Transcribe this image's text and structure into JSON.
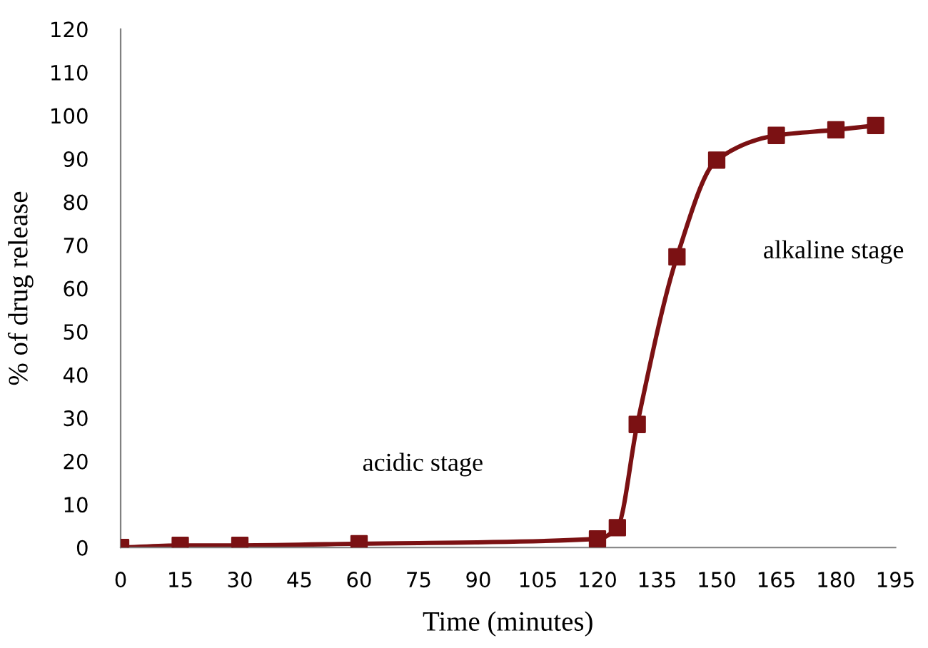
{
  "chart_data": {
    "type": "line",
    "xlabel": "Time (minutes)",
    "ylabel": "% of drug release",
    "x": [
      0,
      15,
      30,
      60,
      120,
      125,
      130,
      140,
      150,
      165,
      180,
      190
    ],
    "series": [
      {
        "color": "#7b1113",
        "values": [
          0,
          0.5,
          0.5,
          0.9,
          2.0,
          4.6,
          28.5,
          67.3,
          89.7,
          95.4,
          96.7,
          97.7
        ]
      }
    ],
    "xlim": [
      0,
      195
    ],
    "xticks": [
      0,
      15,
      30,
      45,
      60,
      75,
      90,
      105,
      120,
      135,
      150,
      165,
      180,
      195
    ],
    "ylim": [
      0,
      120
    ],
    "yticks": [
      0,
      10,
      20,
      30,
      40,
      50,
      60,
      70,
      80,
      90,
      100,
      110,
      120
    ],
    "marker": "square",
    "line_style": "solid",
    "grid": false,
    "annotations": [
      "acidic stage",
      "alkaline stage"
    ]
  }
}
